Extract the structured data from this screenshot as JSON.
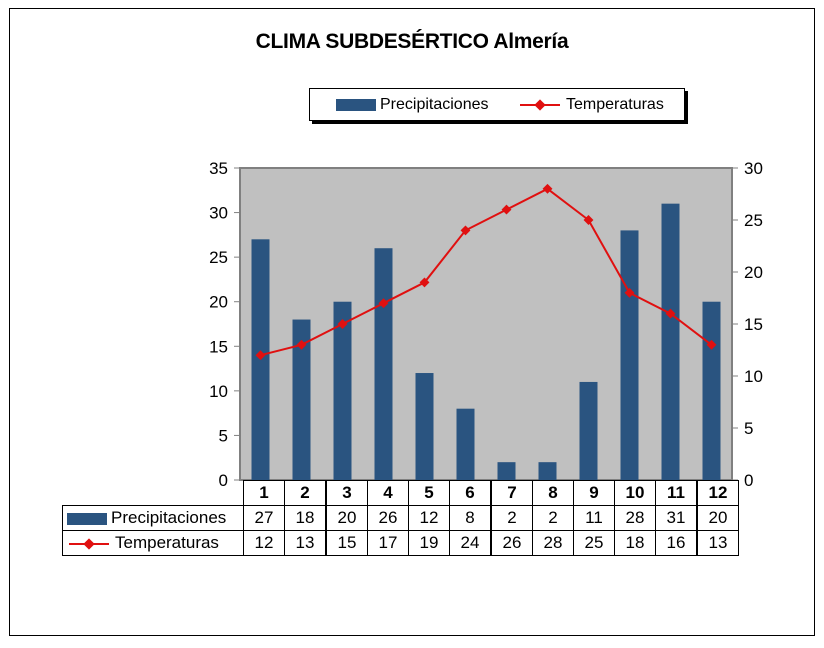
{
  "chart_data": {
    "type": "bar",
    "title": "CLIMA SUBDESÉRTICO  Almería",
    "categories": [
      "1",
      "2",
      "3",
      "4",
      "5",
      "6",
      "7",
      "8",
      "9",
      "10",
      "11",
      "12"
    ],
    "series": [
      {
        "name": "Precipitaciones",
        "type": "bar",
        "axis": "left",
        "color": "#2a5480",
        "values": [
          27,
          18,
          20,
          26,
          12,
          8,
          2,
          2,
          11,
          28,
          31,
          20
        ]
      },
      {
        "name": "Temperaturas",
        "type": "line",
        "axis": "right",
        "color": "#e01010",
        "values": [
          12,
          13,
          15,
          17,
          19,
          24,
          26,
          28,
          25,
          18,
          16,
          13
        ]
      }
    ],
    "y_left": {
      "min": 0,
      "max": 35,
      "ticks": [
        "0",
        "5",
        "10",
        "15",
        "20",
        "25",
        "30",
        "35"
      ]
    },
    "y_right": {
      "min": 0,
      "max": 30,
      "ticks": [
        "0",
        "5",
        "10",
        "15",
        "20",
        "25",
        "30"
      ]
    },
    "grid": false,
    "plot_background": "#c0c0c0",
    "legend_position": "top",
    "data_table": true
  }
}
